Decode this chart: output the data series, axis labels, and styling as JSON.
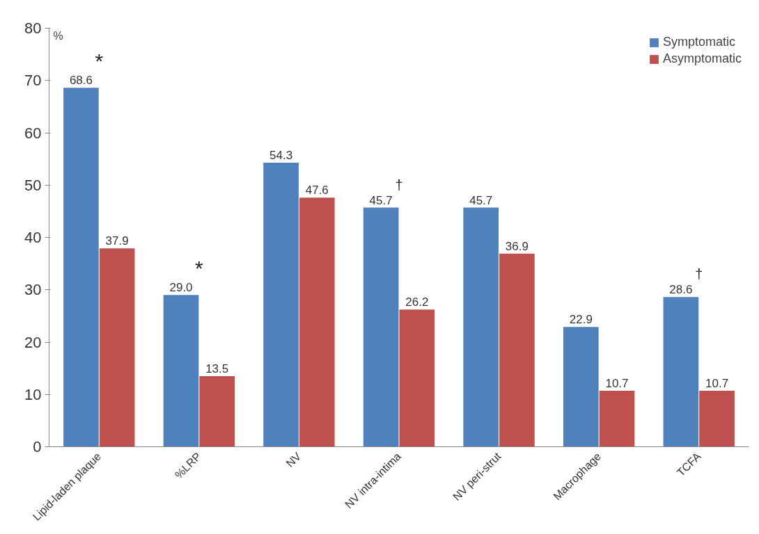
{
  "chart_data": {
    "type": "bar",
    "ylabel": "%",
    "categories": [
      "Lipid-laden plaque",
      "%LRP",
      "NV",
      "NV intra-intima",
      "NV peri-strut",
      "Macrophage",
      "TCFA"
    ],
    "series": [
      {
        "name": "Symptomatic",
        "color": "#4f81bd",
        "values": [
          68.6,
          29.0,
          54.3,
          45.7,
          45.7,
          22.9,
          28.6
        ],
        "value_labels": [
          "68.6",
          "29.0",
          "54.3",
          "45.7",
          "45.7",
          "22.9",
          "28.6"
        ]
      },
      {
        "name": "Asymptomatic",
        "color": "#c0504d",
        "values": [
          37.9,
          13.5,
          47.6,
          26.2,
          36.9,
          10.7,
          10.7
        ],
        "value_labels": [
          "37.9",
          "13.5",
          "47.6",
          "26.2",
          "36.9",
          "10.7",
          "10.7"
        ]
      }
    ],
    "annotations": [
      {
        "text": "*",
        "x": "Lipid-laden plaque",
        "y": 68.6
      },
      {
        "text": "*",
        "x": "%LRP",
        "y": 29.0
      },
      {
        "text": "†",
        "x": "NV intra-intima",
        "y": 45.7
      },
      {
        "text": "†",
        "x": "TCFA",
        "y": 28.6
      }
    ],
    "ylim": [
      0,
      80
    ],
    "yticks": [
      0,
      10,
      20,
      30,
      40,
      50,
      60,
      70,
      80
    ],
    "grid": false,
    "legend": "top right"
  }
}
